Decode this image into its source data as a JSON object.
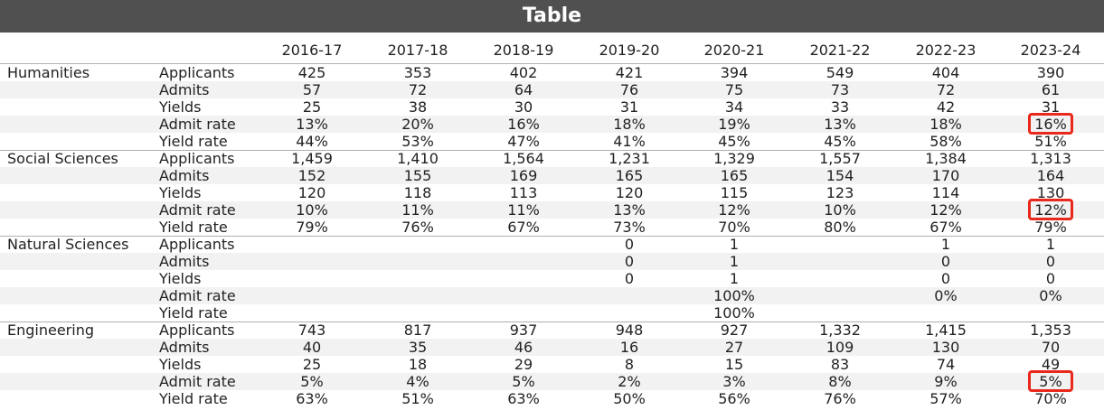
{
  "chart_data": {
    "type": "table",
    "title": "Table",
    "columns": [
      "2016-17",
      "2017-18",
      "2018-19",
      "2019-20",
      "2020-21",
      "2021-22",
      "2022-23",
      "2023-24"
    ],
    "groups": [
      {
        "name": "Humanities",
        "rows": [
          {
            "metric": "Applicants",
            "values": [
              "425",
              "353",
              "402",
              "421",
              "394",
              "549",
              "404",
              "390"
            ]
          },
          {
            "metric": "Admits",
            "values": [
              "57",
              "72",
              "64",
              "76",
              "75",
              "73",
              "72",
              "61"
            ]
          },
          {
            "metric": "Yields",
            "values": [
              "25",
              "38",
              "30",
              "31",
              "34",
              "33",
              "42",
              "31"
            ]
          },
          {
            "metric": "Admit rate",
            "values": [
              "13%",
              "20%",
              "16%",
              "18%",
              "19%",
              "13%",
              "18%",
              "16%"
            ]
          },
          {
            "metric": "Yield rate",
            "values": [
              "44%",
              "53%",
              "47%",
              "41%",
              "45%",
              "45%",
              "58%",
              "51%"
            ]
          }
        ]
      },
      {
        "name": "Social Sciences",
        "rows": [
          {
            "metric": "Applicants",
            "values": [
              "1,459",
              "1,410",
              "1,564",
              "1,231",
              "1,329",
              "1,557",
              "1,384",
              "1,313"
            ]
          },
          {
            "metric": "Admits",
            "values": [
              "152",
              "155",
              "169",
              "165",
              "165",
              "154",
              "170",
              "164"
            ]
          },
          {
            "metric": "Yields",
            "values": [
              "120",
              "118",
              "113",
              "120",
              "115",
              "123",
              "114",
              "130"
            ]
          },
          {
            "metric": "Admit rate",
            "values": [
              "10%",
              "11%",
              "11%",
              "13%",
              "12%",
              "10%",
              "12%",
              "12%"
            ]
          },
          {
            "metric": "Yield rate",
            "values": [
              "79%",
              "76%",
              "67%",
              "73%",
              "70%",
              "80%",
              "67%",
              "79%"
            ]
          }
        ]
      },
      {
        "name": "Natural Sciences",
        "rows": [
          {
            "metric": "Applicants",
            "values": [
              "",
              "",
              "",
              "0",
              "1",
              "",
              "1",
              "1"
            ]
          },
          {
            "metric": "Admits",
            "values": [
              "",
              "",
              "",
              "0",
              "1",
              "",
              "0",
              "0"
            ]
          },
          {
            "metric": "Yields",
            "values": [
              "",
              "",
              "",
              "0",
              "1",
              "",
              "0",
              "0"
            ]
          },
          {
            "metric": "Admit rate",
            "values": [
              "",
              "",
              "",
              "",
              "100%",
              "",
              "0%",
              "0%"
            ]
          },
          {
            "metric": "Yield rate",
            "values": [
              "",
              "",
              "",
              "",
              "100%",
              "",
              "",
              ""
            ]
          }
        ]
      },
      {
        "name": "Engineering",
        "rows": [
          {
            "metric": "Applicants",
            "values": [
              "743",
              "817",
              "937",
              "948",
              "927",
              "1,332",
              "1,415",
              "1,353"
            ]
          },
          {
            "metric": "Admits",
            "values": [
              "40",
              "35",
              "46",
              "16",
              "27",
              "109",
              "130",
              "70"
            ]
          },
          {
            "metric": "Yields",
            "values": [
              "25",
              "18",
              "29",
              "8",
              "15",
              "83",
              "74",
              "49"
            ]
          },
          {
            "metric": "Admit rate",
            "values": [
              "5%",
              "4%",
              "5%",
              "2%",
              "3%",
              "8%",
              "9%",
              "5%"
            ]
          },
          {
            "metric": "Yield rate",
            "values": [
              "63%",
              "51%",
              "63%",
              "50%",
              "56%",
              "76%",
              "57%",
              "70%"
            ]
          }
        ]
      }
    ],
    "highlighted": [
      {
        "group": "Humanities",
        "metric": "Admit rate",
        "column": "2023-24"
      },
      {
        "group": "Social Sciences",
        "metric": "Admit rate",
        "column": "2023-24"
      },
      {
        "group": "Engineering",
        "metric": "Admit rate",
        "column": "2023-24"
      }
    ],
    "highlight_color": "#e8291c"
  }
}
